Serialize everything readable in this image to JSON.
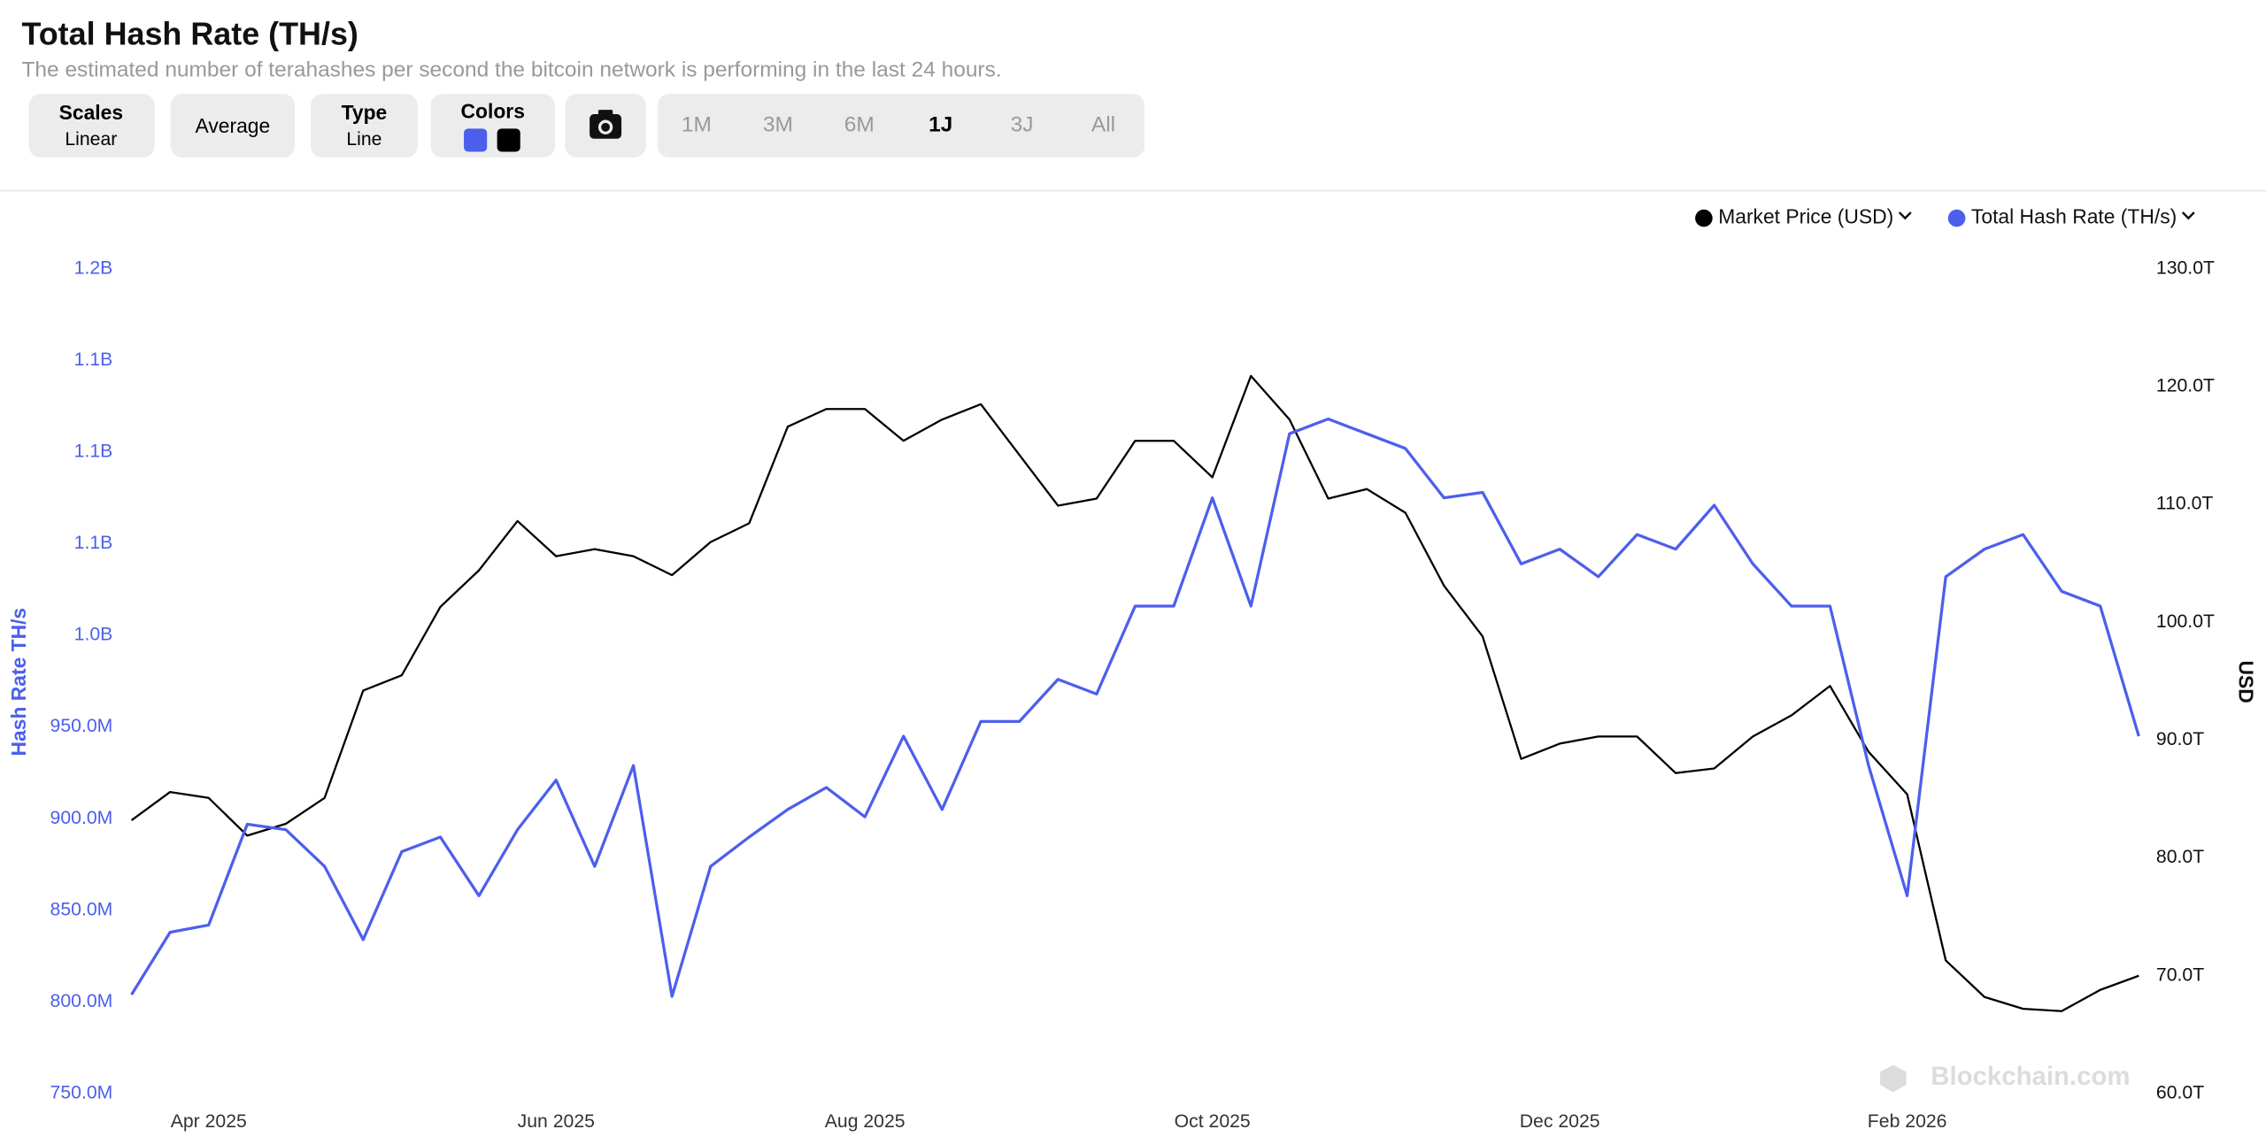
{
  "header": {
    "title": "Total Hash Rate (TH/s)",
    "subtitle": "The estimated number of terahashes per second the bitcoin network is performing in the last 24 hours."
  },
  "toolbar": {
    "scales": {
      "label": "Scales",
      "value": "Linear"
    },
    "average": "Average",
    "type": {
      "label": "Type",
      "value": "Line"
    },
    "colors": "Colors",
    "ranges": [
      "1M",
      "3M",
      "6M",
      "1J",
      "3J",
      "All"
    ],
    "active_range": 3
  },
  "watermark": "Blockchain.com",
  "chart_data": {
    "type": "line",
    "categories": [
      null,
      null,
      "Apr 2025",
      null,
      null,
      null,
      null,
      null,
      null,
      null,
      null,
      "Jun 2025",
      null,
      null,
      null,
      null,
      null,
      null,
      null,
      "Aug 2025",
      null,
      null,
      null,
      null,
      null,
      null,
      null,
      null,
      "Oct 2025",
      null,
      null,
      null,
      null,
      null,
      null,
      null,
      null,
      "Dec 2025",
      null,
      null,
      null,
      null,
      null,
      null,
      null,
      null,
      "Feb 2026",
      null,
      null,
      null,
      null,
      null,
      null
    ],
    "ylabel": "Hash Rate TH/s",
    "y2label": "USD",
    "ylim": [
      750000000,
      1200000000
    ],
    "yticks": [
      {
        "value": 750000000,
        "label": "750.0M"
      },
      {
        "value": 800000000,
        "label": "800.0M"
      },
      {
        "value": 850000000,
        "label": "850.0M"
      },
      {
        "value": 900000000,
        "label": "900.0M"
      },
      {
        "value": 950000000,
        "label": "950.0M"
      },
      {
        "value": 1000000000,
        "label": "1.0B"
      },
      {
        "value": 1050000000,
        "label": "1.1B"
      },
      {
        "value": 1100000000,
        "label": "1.1B"
      },
      {
        "value": 1150000000,
        "label": "1.1B"
      },
      {
        "value": 1200000000,
        "label": "1.2B"
      }
    ],
    "y2lim": [
      60,
      130
    ],
    "y2ticks": [
      {
        "value": 60,
        "label": "60.0T"
      },
      {
        "value": 70,
        "label": "70.0T"
      },
      {
        "value": 80,
        "label": "80.0T"
      },
      {
        "value": 90,
        "label": "90.0T"
      },
      {
        "value": 100,
        "label": "100.0T"
      },
      {
        "value": 110,
        "label": "110.0T"
      },
      {
        "value": 120,
        "label": "120.0T"
      },
      {
        "value": 130,
        "label": "130.0T"
      }
    ],
    "series": [
      {
        "name": "Market Price (USD)",
        "color": "#000000",
        "axis": "y2",
        "values": [
          83.2,
          85.6,
          85.1,
          81.9,
          82.9,
          85.1,
          94.2,
          95.5,
          101.3,
          104.4,
          108.6,
          105.6,
          106.2,
          105.6,
          104.0,
          106.8,
          108.4,
          116.6,
          118.1,
          118.1,
          115.4,
          117.2,
          118.5,
          114.2,
          109.9,
          110.5,
          115.4,
          115.4,
          112.3,
          120.9,
          117.2,
          110.5,
          111.3,
          109.3,
          103.1,
          98.8,
          88.4,
          89.7,
          90.3,
          90.3,
          87.2,
          87.6,
          90.3,
          92.1,
          94.6,
          89.0,
          85.4,
          71.3,
          68.2,
          67.2,
          67.0,
          68.8,
          70.0
        ]
      },
      {
        "name": "Total Hash Rate (TH/s)",
        "color": "#4c5fec",
        "values": [
          804000000,
          838000000,
          842000000,
          897000000,
          894000000,
          874000000,
          834000000,
          882000000,
          890000000,
          858000000,
          894000000,
          921000000,
          874000000,
          929000000,
          803000000,
          874000000,
          890000000,
          905000000,
          917000000,
          901000000,
          945000000,
          905000000,
          953000000,
          953000000,
          976000000,
          968000000,
          1016000000,
          1016000000,
          1075000000,
          1016000000,
          1110000000,
          1118000000,
          1110000000,
          1102000000,
          1075000000,
          1078000000,
          1039000000,
          1047000000,
          1032000000,
          1055000000,
          1047000000,
          1071000000,
          1039000000,
          1016000000,
          1016000000,
          929000000,
          858000000,
          1032000000,
          1047000000,
          1055000000,
          1024000000,
          1016000000,
          945000000
        ]
      }
    ]
  }
}
